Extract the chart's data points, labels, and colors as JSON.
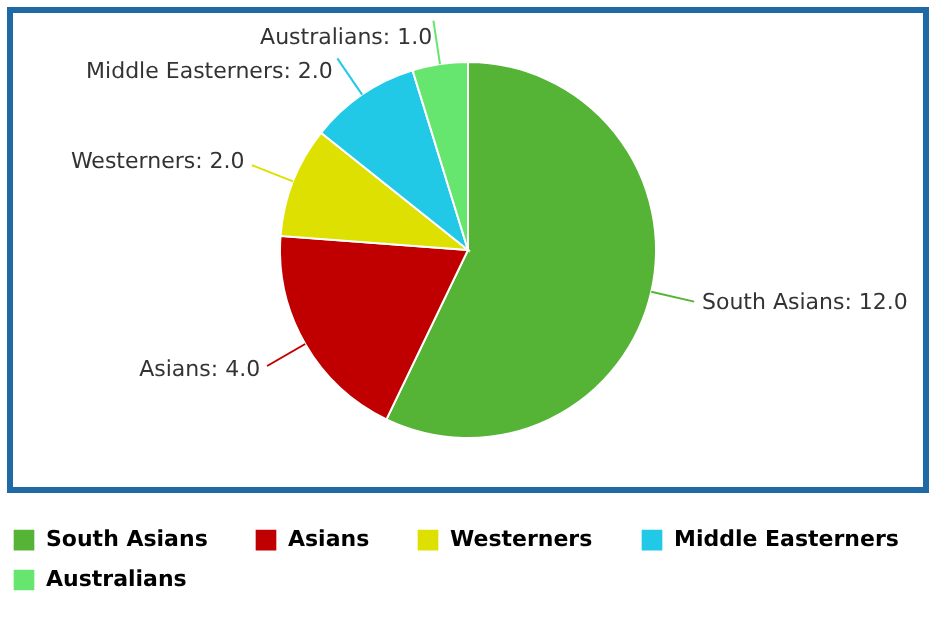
{
  "chart_data": {
    "type": "pie",
    "categories": [
      "South Asians",
      "Asians",
      "Westerners",
      "Middle Easterners",
      "Australians"
    ],
    "values": [
      12.0,
      4.0,
      2.0,
      2.0,
      1.0
    ],
    "value_labels": [
      "South Asians: 12.0",
      "Asians: 4.0",
      "Westerners: 2.0",
      "Middle Easterners: 2.0",
      "Australians: 1.0"
    ],
    "colors": [
      "#55b336",
      "#c00000",
      "#dde000",
      "#22c9e6",
      "#66e66e"
    ],
    "legend": "bottom"
  }
}
